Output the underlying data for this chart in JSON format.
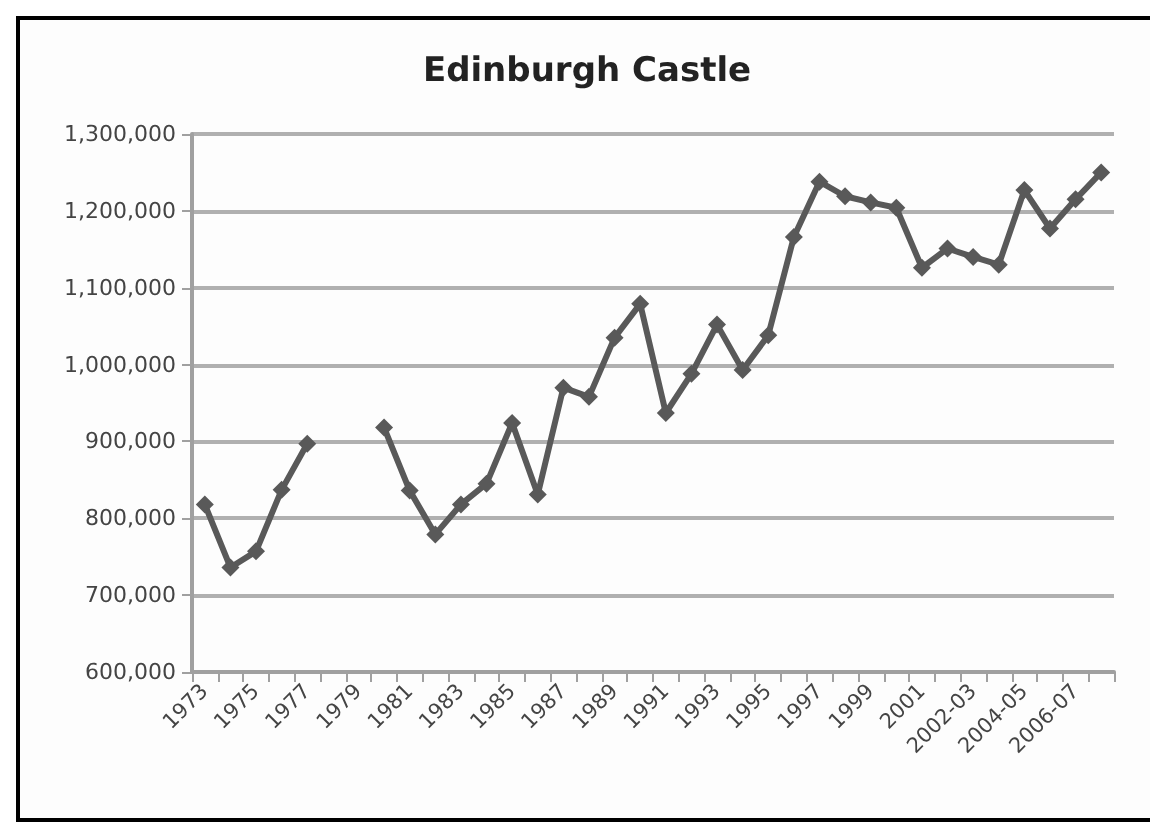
{
  "chart_data": {
    "type": "line",
    "title": "Edinburgh Castle",
    "categories": [
      "1973",
      null,
      "1975",
      null,
      "1977",
      null,
      "1979",
      null,
      "1981",
      null,
      "1983",
      null,
      "1985",
      null,
      "1987",
      null,
      "1989",
      null,
      "1991",
      null,
      "1993",
      null,
      "1995",
      null,
      "1997",
      null,
      "1999",
      null,
      "2001",
      null,
      "2002-03",
      null,
      "2004-05",
      null,
      "2006-07",
      null
    ],
    "series": [
      {
        "color": "#595959",
        "values": [
          818000,
          736000,
          757000,
          837000,
          897000,
          null,
          null,
          918000,
          836000,
          779000,
          818000,
          845000,
          924000,
          831000,
          970000,
          958000,
          1035000,
          1079000,
          937000,
          988000,
          1052000,
          993000,
          1038000,
          1166000,
          1238000,
          1219000,
          1211000,
          1204000,
          1126000,
          1151000,
          1140000,
          1130000,
          1227000,
          1177000,
          1215000,
          1250000
        ]
      }
    ],
    "ylim": [
      600000,
      1300000
    ],
    "yticks": [
      {
        "value": 600000,
        "label": "600,000"
      },
      {
        "value": 700000,
        "label": "700,000"
      },
      {
        "value": 800000,
        "label": "800,000"
      },
      {
        "value": 900000,
        "label": "900,000"
      },
      {
        "value": 1000000,
        "label": "1,000,000"
      },
      {
        "value": 1100000,
        "label": "1,100,000"
      },
      {
        "value": 1200000,
        "label": "1,200,000"
      },
      {
        "value": 1300000,
        "label": "1,300,000"
      }
    ],
    "grid": "y",
    "marker": "diamond",
    "line_style": "solid"
  }
}
